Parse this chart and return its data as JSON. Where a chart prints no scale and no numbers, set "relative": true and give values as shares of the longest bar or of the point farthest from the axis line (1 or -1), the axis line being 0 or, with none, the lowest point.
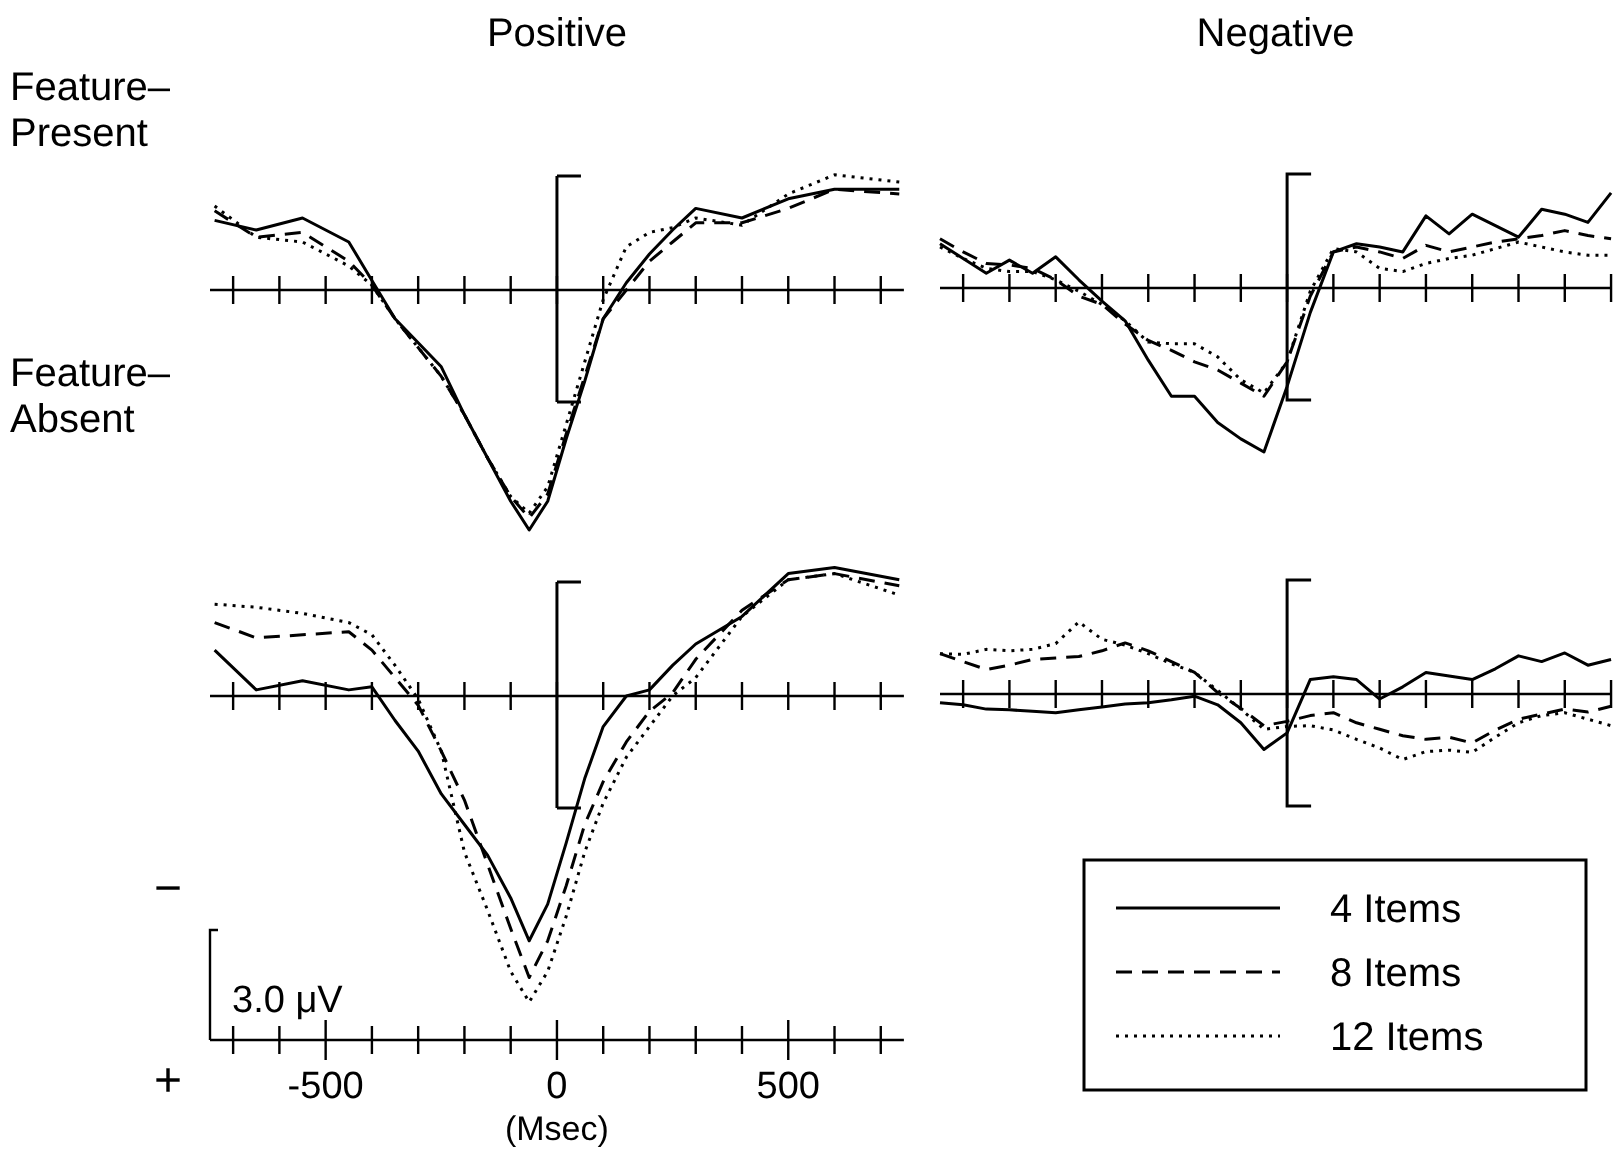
{
  "chart_data": [
    {
      "type": "line",
      "title": "Positive",
      "ylabel": "Feature–Present",
      "relative": true,
      "tick_labels": false,
      "ref_lines": [
        {
          "axis": "x",
          "value": 0
        }
      ],
      "x": [
        -740,
        -650,
        -550,
        -450,
        -400,
        -350,
        -300,
        -250,
        -200,
        -150,
        -100,
        -60,
        -20,
        20,
        60,
        100,
        150,
        200,
        250,
        300,
        400,
        500,
        600,
        740
      ],
      "xlim": [
        -750,
        750
      ],
      "xticks": [
        {
          "value": -700,
          "label": null
        },
        {
          "value": -600,
          "label": null
        },
        -500,
        {
          "value": -400,
          "label": null
        },
        {
          "value": -300,
          "label": null
        },
        {
          "value": -200,
          "label": null
        },
        {
          "value": -100,
          "label": null
        },
        0,
        {
          "value": 100,
          "label": null
        },
        {
          "value": 200,
          "label": null
        },
        {
          "value": 300,
          "label": null
        },
        {
          "value": 400,
          "label": null
        },
        500,
        {
          "value": 600,
          "label": null
        },
        {
          "value": 700,
          "label": null
        }
      ],
      "series": [
        {
          "color": "#000000",
          "line_style": "solid",
          "values": [
            0.29,
            0.25,
            0.3,
            0.2,
            0.04,
            -0.12,
            -0.22,
            -0.32,
            -0.52,
            -0.7,
            -0.88,
            -1.0,
            -0.88,
            -0.62,
            -0.38,
            -0.12,
            0.03,
            0.15,
            0.25,
            0.34,
            0.3,
            0.38,
            0.42,
            0.42
          ]
        },
        {
          "color": "#000000",
          "line_style": "dashed",
          "values": [
            0.33,
            0.22,
            0.24,
            0.12,
            0.02,
            -0.12,
            -0.24,
            -0.36,
            -0.52,
            -0.7,
            -0.86,
            -0.95,
            -0.85,
            -0.6,
            -0.36,
            -0.12,
            0.0,
            0.12,
            0.2,
            0.28,
            0.28,
            0.34,
            0.42,
            0.4
          ]
        },
        {
          "color": "#000000",
          "line_style": "dotted",
          "values": [
            0.35,
            0.22,
            0.2,
            0.1,
            0.02,
            -0.12,
            -0.24,
            -0.36,
            -0.52,
            -0.7,
            -0.86,
            -0.93,
            -0.82,
            -0.56,
            -0.3,
            -0.04,
            0.18,
            0.24,
            0.26,
            0.3,
            0.27,
            0.4,
            0.48,
            0.45
          ]
        }
      ]
    },
    {
      "type": "line",
      "title": "Negative",
      "relative": true,
      "categories": [
        null,
        null,
        null,
        null,
        null,
        null,
        null,
        null,
        null,
        null,
        null,
        null,
        null,
        null,
        null,
        null,
        null,
        null,
        null,
        null,
        null,
        null,
        null,
        null,
        null,
        null,
        null,
        null,
        null,
        null
      ],
      "series": [
        {
          "color": "#000000",
          "line_style": "solid",
          "values": [
            0.27,
            0.18,
            0.09,
            0.17,
            0.09,
            0.19,
            0.05,
            -0.08,
            -0.2,
            -0.44,
            -0.66,
            -0.66,
            -0.82,
            -0.92,
            -1.0,
            -0.6,
            -0.15,
            0.22,
            0.27,
            0.25,
            0.22,
            0.44,
            0.33,
            0.45,
            0.38,
            0.31,
            0.48,
            0.45,
            0.4,
            0.58
          ]
        },
        {
          "color": "#000000",
          "line_style": "dashed",
          "values": [
            0.3,
            0.22,
            0.15,
            0.14,
            0.12,
            0.05,
            -0.05,
            -0.1,
            -0.22,
            -0.32,
            -0.38,
            -0.45,
            -0.5,
            -0.58,
            -0.66,
            -0.45,
            -0.05,
            0.22,
            0.25,
            0.22,
            0.18,
            0.26,
            0.22,
            0.25,
            0.28,
            0.3,
            0.32,
            0.35,
            0.32,
            0.3
          ]
        },
        {
          "color": "#000000",
          "line_style": "dotted",
          "values": [
            0.25,
            0.18,
            0.12,
            0.1,
            0.1,
            0.05,
            -0.02,
            -0.1,
            -0.2,
            -0.33,
            -0.34,
            -0.34,
            -0.42,
            -0.56,
            -0.64,
            -0.45,
            -0.02,
            0.24,
            0.22,
            0.12,
            0.1,
            0.15,
            0.18,
            0.2,
            0.24,
            0.28,
            0.25,
            0.22,
            0.2,
            0.2
          ]
        }
      ]
    },
    {
      "type": "line",
      "ylabel": "Feature–Absent",
      "xlabel": "(Msec)",
      "relative": true,
      "tick_labels": "x",
      "ref_lines": [
        {
          "axis": "x",
          "value": 0
        }
      ],
      "annotations": [
        "−",
        "3.0 μV",
        "+"
      ],
      "x": [
        -740,
        -650,
        -550,
        -450,
        -400,
        -350,
        -300,
        -250,
        -200,
        -150,
        -100,
        -60,
        -20,
        20,
        60,
        100,
        150,
        200,
        250,
        300,
        400,
        500,
        600,
        740
      ],
      "xlim": [
        -750,
        750
      ],
      "xticks": [
        {
          "value": -700,
          "label": null
        },
        {
          "value": -600,
          "label": null
        },
        -500,
        {
          "value": -400,
          "label": null
        },
        {
          "value": -300,
          "label": null
        },
        {
          "value": -200,
          "label": null
        },
        {
          "value": -100,
          "label": null
        },
        0,
        {
          "value": 100,
          "label": null
        },
        {
          "value": 200,
          "label": null
        },
        {
          "value": 300,
          "label": null
        },
        {
          "value": 400,
          "label": null
        },
        500,
        {
          "value": 600,
          "label": null
        },
        {
          "value": 700,
          "label": null
        }
      ],
      "series": [
        {
          "color": "#000000",
          "line_style": "solid",
          "values": [
            0.15,
            0.02,
            0.05,
            0.02,
            0.03,
            -0.08,
            -0.18,
            -0.32,
            -0.42,
            -0.52,
            -0.66,
            -0.8,
            -0.68,
            -0.48,
            -0.27,
            -0.1,
            0.0,
            0.02,
            0.1,
            0.17,
            0.26,
            0.4,
            0.42,
            0.38
          ]
        },
        {
          "color": "#000000",
          "line_style": "dashed",
          "values": [
            0.24,
            0.19,
            0.2,
            0.21,
            0.15,
            0.06,
            -0.03,
            -0.18,
            -0.34,
            -0.55,
            -0.76,
            -0.92,
            -0.8,
            -0.62,
            -0.42,
            -0.28,
            -0.15,
            -0.05,
            0.01,
            0.12,
            0.28,
            0.38,
            0.4,
            0.36
          ]
        },
        {
          "color": "#000000",
          "line_style": "dotted",
          "values": [
            0.3,
            0.29,
            0.27,
            0.24,
            0.2,
            0.1,
            -0.01,
            -0.18,
            -0.51,
            -0.7,
            -0.9,
            -1.0,
            -0.9,
            -0.72,
            -0.51,
            -0.35,
            -0.2,
            -0.1,
            0.0,
            0.06,
            0.26,
            0.38,
            0.4,
            0.33
          ]
        }
      ]
    },
    {
      "type": "line",
      "relative": true,
      "legend": "bottom",
      "categories": [
        null,
        null,
        null,
        null,
        null,
        null,
        null,
        null,
        null,
        null,
        null,
        null,
        null,
        null,
        null,
        null,
        null,
        null,
        null,
        null,
        null,
        null,
        null,
        null,
        null,
        null,
        null,
        null,
        null,
        null
      ],
      "series": [
        {
          "name": "4 Items",
          "color": "#000000",
          "line_style": "solid",
          "values": [
            -0.12,
            -0.15,
            -0.21,
            -0.22,
            -0.24,
            -0.26,
            -0.22,
            -0.18,
            -0.14,
            -0.12,
            -0.08,
            -0.03,
            -0.15,
            -0.4,
            -0.77,
            -0.54,
            0.2,
            0.24,
            0.2,
            -0.07,
            0.1,
            0.3,
            0.25,
            0.2,
            0.35,
            0.53,
            0.45,
            0.57,
            0.4,
            0.48
          ]
        },
        {
          "name": "8 Items",
          "color": "#000000",
          "line_style": "dashed",
          "values": [
            0.56,
            0.45,
            0.34,
            0.4,
            0.48,
            0.5,
            0.52,
            0.6,
            0.71,
            0.6,
            0.45,
            0.3,
            0.02,
            -0.2,
            -0.44,
            -0.38,
            -0.3,
            -0.26,
            -0.4,
            -0.49,
            -0.58,
            -0.63,
            -0.6,
            -0.68,
            -0.5,
            -0.35,
            -0.28,
            -0.21,
            -0.25,
            -0.17
          ]
        },
        {
          "name": "12 Items",
          "color": "#000000",
          "line_style": "dotted",
          "values": [
            0.56,
            0.55,
            0.62,
            0.6,
            0.62,
            0.7,
            1.0,
            0.76,
            0.68,
            0.56,
            0.42,
            0.3,
            0.05,
            -0.21,
            -0.49,
            -0.45,
            -0.44,
            -0.5,
            -0.63,
            -0.75,
            -0.91,
            -0.8,
            -0.78,
            -0.81,
            -0.6,
            -0.4,
            -0.3,
            -0.26,
            -0.35,
            -0.44
          ]
        }
      ]
    }
  ]
}
